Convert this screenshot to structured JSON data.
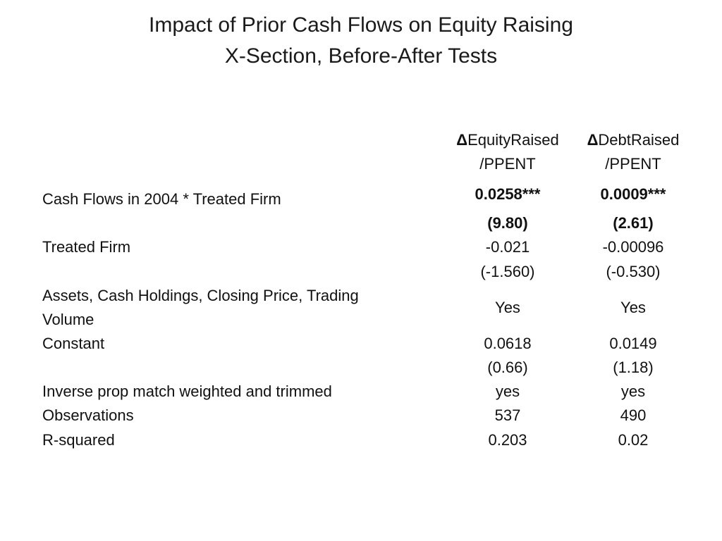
{
  "title": {
    "line1": "Impact of Prior Cash Flows on Equity Raising",
    "line2": "X-Section, Before-After Tests"
  },
  "table": {
    "columns": [
      {
        "delta": "Δ",
        "name": "EquityRaised",
        "denominator": "/PPENT"
      },
      {
        "delta": "Δ",
        "name": "DebtRaised",
        "denominator": "/PPENT"
      }
    ],
    "rows": {
      "cash_flows": {
        "label": "Cash Flows in 2004 * Treated Firm",
        "coef": [
          "0.0258***",
          "0.0009***"
        ],
        "tstat": [
          "(9.80)",
          "(2.61)"
        ]
      },
      "treated": {
        "label": "Treated Firm",
        "coef": [
          "-0.021",
          "-0.00096"
        ],
        "tstat": [
          "(-1.560)",
          "(-0.530)"
        ]
      },
      "controls": {
        "label_line1": "Assets, Cash Holdings,  Closing Price, Trading",
        "label_line2": "Volume",
        "values": [
          "Yes",
          "Yes"
        ]
      },
      "constant": {
        "label": "Constant",
        "coef": [
          "0.0618",
          "0.0149"
        ],
        "tstat": [
          "(0.66)",
          "(1.18)"
        ]
      },
      "ipm": {
        "label": "Inverse prop match weighted and trimmed",
        "values": [
          "yes",
          "yes"
        ]
      },
      "observations": {
        "label": "Observations",
        "values": [
          "537",
          "490"
        ]
      },
      "rsquared": {
        "label": "R-squared",
        "values": [
          "0.203",
          "0.02"
        ]
      }
    }
  }
}
